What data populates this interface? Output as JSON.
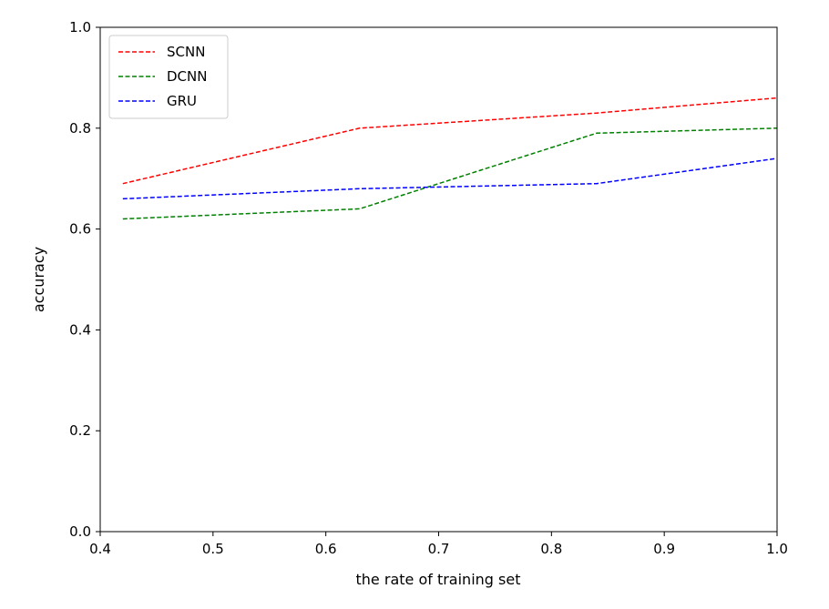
{
  "chart_data": {
    "type": "line",
    "title": "",
    "xlabel": "the rate of training set",
    "ylabel": "accuracy",
    "xlim": [
      0.4,
      1.0
    ],
    "ylim": [
      0.0,
      1.0
    ],
    "xticks": [
      "0.4",
      "0.5",
      "0.6",
      "0.7",
      "0.8",
      "0.9",
      "1.0"
    ],
    "yticks": [
      "0.0",
      "0.2",
      "0.4",
      "0.6",
      "0.8",
      "1.0"
    ],
    "grid": false,
    "legend_position": "top-left",
    "line_style": "dashed",
    "x": [
      0.42,
      0.63,
      0.84,
      1.0
    ],
    "series": [
      {
        "name": "SCNN",
        "color": "#ff0000",
        "values": [
          0.69,
          0.8,
          0.83,
          0.86
        ]
      },
      {
        "name": "DCNN",
        "color": "#008000",
        "values": [
          0.62,
          0.64,
          0.79,
          0.8
        ]
      },
      {
        "name": "GRU",
        "color": "#0000ff",
        "values": [
          0.66,
          0.68,
          0.69,
          0.74
        ]
      }
    ]
  }
}
